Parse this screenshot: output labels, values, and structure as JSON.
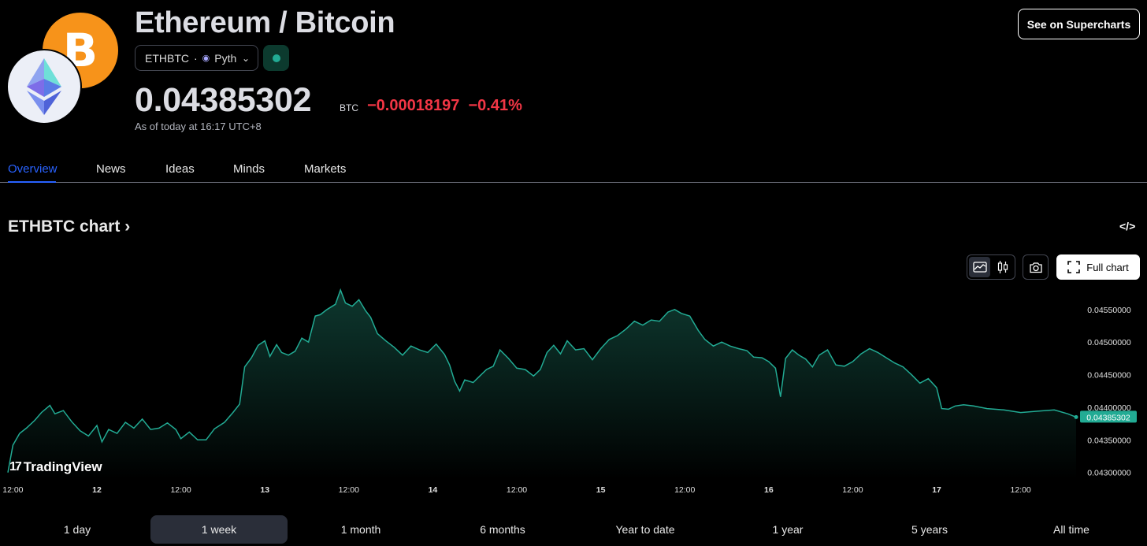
{
  "header": {
    "title": "Ethereum / Bitcoin",
    "symbol": "ETHBTC",
    "separator": "·",
    "provider": "Pyth",
    "price": "0.04385302",
    "currency": "BTC",
    "change": "−0.00018197",
    "change_percent": "−0.41%",
    "as_of": "As of today at 16:17 UTC+8",
    "supercharts_label": "See on Supercharts",
    "btc_logo_glyph": "B",
    "colors": {
      "btc": "#F7931A",
      "negative": "#f23645",
      "positive": "#22ab94",
      "accent": "#2962ff"
    }
  },
  "tabs": {
    "overview": "Overview",
    "news": "News",
    "ideas": "Ideas",
    "minds": "Minds",
    "markets": "Markets",
    "active": "Overview"
  },
  "chart_section": {
    "heading": "ETHBTC chart",
    "heading_chevron": "›",
    "embed_icon": "</>",
    "full_chart_label": "Full chart",
    "watermark": "TradingView",
    "watermark_mark": "17",
    "current_price_tag": "0.04385302",
    "icons": [
      "area-chart-icon",
      "candles-icon",
      "camera-icon",
      "fullscreen-icon",
      "embed-code-icon"
    ]
  },
  "chart_data": {
    "type": "area",
    "title": "",
    "xlabel": "",
    "ylabel": "",
    "ylim": [
      0.0429,
      0.0458
    ],
    "yticks": [
      "0.04300000",
      "0.04350000",
      "0.04400000",
      "0.04450000",
      "0.04500000",
      "0.04550000"
    ],
    "ytick_values": [
      0.043,
      0.0435,
      0.044,
      0.0445,
      0.045,
      0.0455
    ],
    "xticks": [
      "12:00",
      "12",
      "12:00",
      "13",
      "12:00",
      "14",
      "12:00",
      "15",
      "12:00",
      "16",
      "12:00",
      "17",
      "12:00"
    ],
    "xtick_bold": [
      false,
      true,
      false,
      true,
      false,
      true,
      false,
      true,
      false,
      true,
      false,
      true,
      false
    ],
    "xtick_positions_day": [
      0.5,
      1,
      1.5,
      2,
      2.5,
      3,
      3.5,
      4,
      4.5,
      5,
      5.5,
      6,
      6.5
    ],
    "x_range_days": [
      0.47,
      6.83
    ],
    "series": [
      {
        "points": [
          [
            0.47,
            0.043
          ],
          [
            0.5,
            0.04342
          ],
          [
            0.54,
            0.0436
          ],
          [
            0.58,
            0.04368
          ],
          [
            0.63,
            0.0438
          ],
          [
            0.67,
            0.04392
          ],
          [
            0.72,
            0.04403
          ],
          [
            0.75,
            0.0439
          ],
          [
            0.8,
            0.04395
          ],
          [
            0.85,
            0.04378
          ],
          [
            0.9,
            0.04364
          ],
          [
            0.95,
            0.04356
          ],
          [
            1.0,
            0.04372
          ],
          [
            1.03,
            0.04347
          ],
          [
            1.07,
            0.04366
          ],
          [
            1.12,
            0.0436
          ],
          [
            1.17,
            0.04377
          ],
          [
            1.22,
            0.04368
          ],
          [
            1.27,
            0.04382
          ],
          [
            1.32,
            0.04366
          ],
          [
            1.37,
            0.04368
          ],
          [
            1.42,
            0.04376
          ],
          [
            1.47,
            0.04366
          ],
          [
            1.5,
            0.04352
          ],
          [
            1.55,
            0.04362
          ],
          [
            1.6,
            0.0435
          ],
          [
            1.65,
            0.0435
          ],
          [
            1.7,
            0.04367
          ],
          [
            1.76,
            0.04377
          ],
          [
            1.81,
            0.04392
          ],
          [
            1.85,
            0.04405
          ],
          [
            1.88,
            0.04462
          ],
          [
            1.92,
            0.04476
          ],
          [
            1.96,
            0.04495
          ],
          [
            2.0,
            0.04502
          ],
          [
            2.03,
            0.04478
          ],
          [
            2.07,
            0.04496
          ],
          [
            2.1,
            0.04484
          ],
          [
            2.14,
            0.0448
          ],
          [
            2.18,
            0.04486
          ],
          [
            2.22,
            0.04506
          ],
          [
            2.26,
            0.045
          ],
          [
            2.3,
            0.0454
          ],
          [
            2.33,
            0.04542
          ],
          [
            2.37,
            0.0455
          ],
          [
            2.42,
            0.04558
          ],
          [
            2.45,
            0.0458
          ],
          [
            2.48,
            0.0456
          ],
          [
            2.52,
            0.04555
          ],
          [
            2.56,
            0.04565
          ],
          [
            2.6,
            0.04548
          ],
          [
            2.63,
            0.04538
          ],
          [
            2.67,
            0.04513
          ],
          [
            2.72,
            0.04502
          ],
          [
            2.77,
            0.04492
          ],
          [
            2.82,
            0.0448
          ],
          [
            2.87,
            0.04494
          ],
          [
            2.92,
            0.04488
          ],
          [
            2.97,
            0.04484
          ],
          [
            3.02,
            0.04497
          ],
          [
            3.07,
            0.04481
          ],
          [
            3.1,
            0.04465
          ],
          [
            3.13,
            0.0444
          ],
          [
            3.16,
            0.04425
          ],
          [
            3.19,
            0.04442
          ],
          [
            3.24,
            0.04438
          ],
          [
            3.28,
            0.04448
          ],
          [
            3.32,
            0.04458
          ],
          [
            3.36,
            0.04463
          ],
          [
            3.4,
            0.04488
          ],
          [
            3.45,
            0.04475
          ],
          [
            3.5,
            0.0446
          ],
          [
            3.55,
            0.04458
          ],
          [
            3.6,
            0.04448
          ],
          [
            3.64,
            0.04458
          ],
          [
            3.68,
            0.04484
          ],
          [
            3.72,
            0.04495
          ],
          [
            3.76,
            0.04482
          ],
          [
            3.8,
            0.04502
          ],
          [
            3.85,
            0.04488
          ],
          [
            3.9,
            0.0449
          ],
          [
            3.95,
            0.04473
          ],
          [
            4.0,
            0.0449
          ],
          [
            4.05,
            0.04504
          ],
          [
            4.1,
            0.0451
          ],
          [
            4.15,
            0.0452
          ],
          [
            4.2,
            0.04532
          ],
          [
            4.25,
            0.04526
          ],
          [
            4.3,
            0.04534
          ],
          [
            4.35,
            0.04532
          ],
          [
            4.4,
            0.04546
          ],
          [
            4.44,
            0.0455
          ],
          [
            4.48,
            0.04544
          ],
          [
            4.53,
            0.0454
          ],
          [
            4.58,
            0.04518
          ],
          [
            4.62,
            0.04504
          ],
          [
            4.67,
            0.04494
          ],
          [
            4.72,
            0.045
          ],
          [
            4.77,
            0.04494
          ],
          [
            4.82,
            0.0449
          ],
          [
            4.87,
            0.04487
          ],
          [
            4.91,
            0.04477
          ],
          [
            4.96,
            0.04476
          ],
          [
            5.0,
            0.0447
          ],
          [
            5.04,
            0.0446
          ],
          [
            5.07,
            0.04416
          ],
          [
            5.1,
            0.04475
          ],
          [
            5.14,
            0.04488
          ],
          [
            5.18,
            0.0448
          ],
          [
            5.22,
            0.04474
          ],
          [
            5.26,
            0.04462
          ],
          [
            5.3,
            0.0448
          ],
          [
            5.35,
            0.04488
          ],
          [
            5.4,
            0.04465
          ],
          [
            5.45,
            0.04463
          ],
          [
            5.5,
            0.0447
          ],
          [
            5.55,
            0.04482
          ],
          [
            5.6,
            0.0449
          ],
          [
            5.65,
            0.04484
          ],
          [
            5.7,
            0.04476
          ],
          [
            5.75,
            0.04468
          ],
          [
            5.8,
            0.04462
          ],
          [
            5.85,
            0.0445
          ],
          [
            5.9,
            0.04437
          ],
          [
            5.95,
            0.04444
          ],
          [
            6.0,
            0.0443
          ],
          [
            6.03,
            0.04398
          ],
          [
            6.07,
            0.04397
          ],
          [
            6.11,
            0.04402
          ],
          [
            6.16,
            0.04404
          ],
          [
            6.22,
            0.04402
          ],
          [
            6.3,
            0.04398
          ],
          [
            6.4,
            0.04396
          ],
          [
            6.5,
            0.04392
          ],
          [
            6.6,
            0.04394
          ],
          [
            6.7,
            0.04396
          ],
          [
            6.78,
            0.0439
          ],
          [
            6.83,
            0.04385
          ]
        ]
      }
    ],
    "line_color": "#22ab94",
    "grid": false,
    "legend": "none"
  },
  "ranges": {
    "items": [
      "1 day",
      "1 week",
      "1 month",
      "6 months",
      "Year to date",
      "1 year",
      "5 years",
      "All time"
    ],
    "active": "1 week"
  }
}
